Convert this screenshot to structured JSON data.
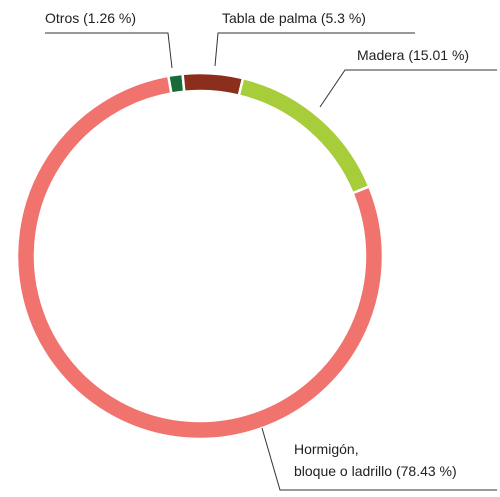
{
  "chart_data": {
    "type": "donut",
    "categories": [
      "Otros",
      "Tabla de palma",
      "Madera",
      "Hormigón,\nbloque o ladrillo"
    ],
    "values": [
      1.26,
      5.3,
      15.01,
      78.43
    ],
    "value_labels": [
      "(1.26 %)",
      "(5.3 %)",
      "(15.01 %)",
      "(78.43 %)"
    ],
    "colors": [
      "#166b39",
      "#8b2f1c",
      "#a7cd3a",
      "#f1736e"
    ]
  }
}
